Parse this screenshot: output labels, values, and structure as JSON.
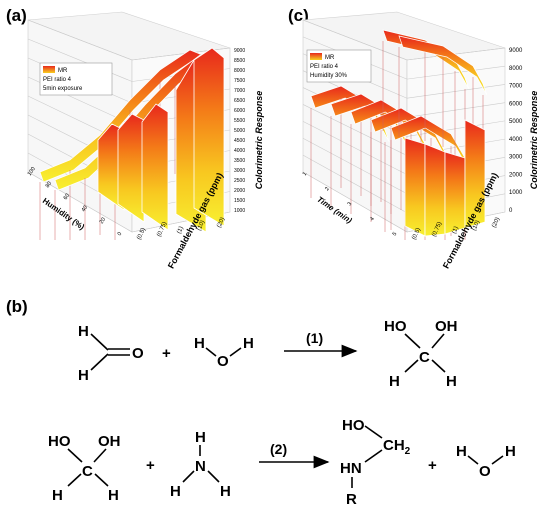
{
  "panel_a": {
    "label": "(a)",
    "legend": {
      "series": "MR",
      "line1": "PEI ratio 4",
      "line2": "5min exposure"
    },
    "z_axis_label": "Colorimetric Response",
    "z_ticks": [
      "1000",
      "1500",
      "2000",
      "2500",
      "3000",
      "3500",
      "4000",
      "4500",
      "5000",
      "5500",
      "6000",
      "6500",
      "7000",
      "7500",
      "8000",
      "8500",
      "9000"
    ],
    "x_axis_label": "Formaldehyde gas (ppm)",
    "x_ticks": [
      "(0.5)",
      "(0.75)",
      "(1)",
      "(10)",
      "(20)"
    ],
    "y_axis_label": "Humidity (%)",
    "y_ticks": [
      "100",
      "80",
      "60",
      "40",
      "20",
      "0"
    ],
    "colors": {
      "high": "#e8281c",
      "mid": "#f8a018",
      "low": "#f8f020",
      "grid": "#c8c8c8",
      "drop": "#d05050"
    }
  },
  "panel_c": {
    "label": "(c)",
    "legend": {
      "series": "MR",
      "line1": "PEI ratio 4",
      "line2": "Humidity 30%"
    },
    "z_axis_label": "Colorimetric Response",
    "z_ticks": [
      "0",
      "1000",
      "2000",
      "3000",
      "4000",
      "5000",
      "6000",
      "7000",
      "8000",
      "9000"
    ],
    "x_axis_label": "Formaldehyde gas (ppm)",
    "x_ticks": [
      "(0.5)",
      "(0.75)",
      "(1)",
      "(10)",
      "(20)"
    ],
    "y_axis_label": "Time (min)",
    "y_ticks": [
      "1",
      "2",
      "3",
      "4",
      "5"
    ]
  },
  "panel_b": {
    "label": "(b)",
    "r1_arrow_label": "(1)",
    "r2_arrow_label": "(2)",
    "atoms": {
      "H": "H",
      "O": "O",
      "HO": "HO",
      "OH": "OH",
      "C": "C",
      "N": "N",
      "HN": "HN",
      "R": "R",
      "CH2": "CH",
      "sub2": "2"
    },
    "plus": "+"
  }
}
